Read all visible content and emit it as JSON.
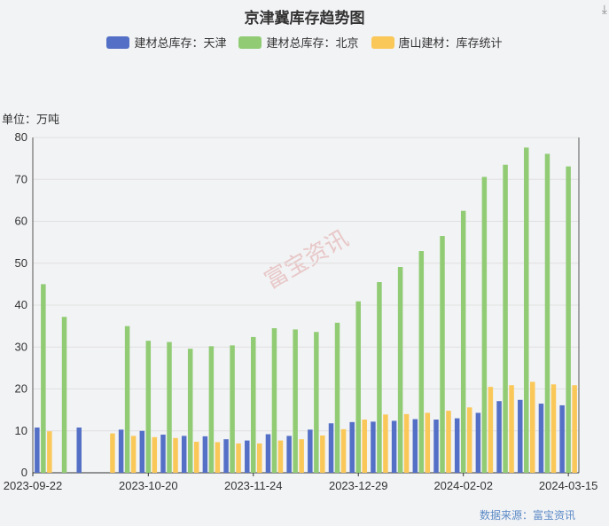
{
  "chart_data": {
    "type": "bar",
    "title": "京津冀库存趋势图",
    "unit_label": "单位：万吨",
    "source": "数据来源：富宝资讯",
    "watermark": "富宝资讯",
    "ylim": [
      0,
      80
    ],
    "yticks": [
      0,
      10,
      20,
      30,
      40,
      50,
      60,
      70,
      80
    ],
    "x_tick_labels": [
      {
        "index": 0,
        "label": "2023-09-22"
      },
      {
        "index": 5,
        "label": "2023-10-20"
      },
      {
        "index": 10,
        "label": "2023-11-24"
      },
      {
        "index": 15,
        "label": "2023-12-29"
      },
      {
        "index": 20,
        "label": "2024-02-02"
      },
      {
        "index": 25,
        "label": "2024-03-15"
      }
    ],
    "grid": true,
    "legend_position": "top",
    "series": [
      {
        "name": "建材总库存：天津",
        "color": "#5470c6",
        "values": [
          10.8,
          null,
          10.8,
          null,
          10.3,
          10.0,
          9.1,
          8.8,
          8.7,
          8.0,
          7.7,
          9.2,
          8.8,
          10.3,
          11.8,
          12.1,
          12.2,
          12.4,
          12.8,
          12.7,
          13.0,
          14.3,
          17.1,
          17.4,
          16.5,
          16.1
        ]
      },
      {
        "name": "建材总库存：北京",
        "color": "#91cc75",
        "values": [
          45.0,
          37.2,
          null,
          null,
          35.0,
          31.5,
          31.2,
          29.6,
          30.2,
          30.4,
          32.4,
          34.5,
          34.2,
          33.6,
          35.8,
          40.9,
          45.5,
          49.1,
          52.9,
          56.5,
          62.5,
          70.6,
          73.5,
          77.6,
          76.1,
          73.1
        ]
      },
      {
        "name": "唐山建材：库存统计",
        "color": "#fac858",
        "values": [
          9.9,
          null,
          null,
          9.4,
          8.8,
          8.5,
          8.3,
          7.4,
          7.3,
          7.0,
          7.0,
          7.7,
          8.0,
          8.9,
          10.4,
          12.7,
          13.9,
          14.0,
          14.3,
          14.8,
          15.6,
          20.5,
          20.9,
          21.7,
          21.1,
          20.9
        ]
      }
    ]
  }
}
